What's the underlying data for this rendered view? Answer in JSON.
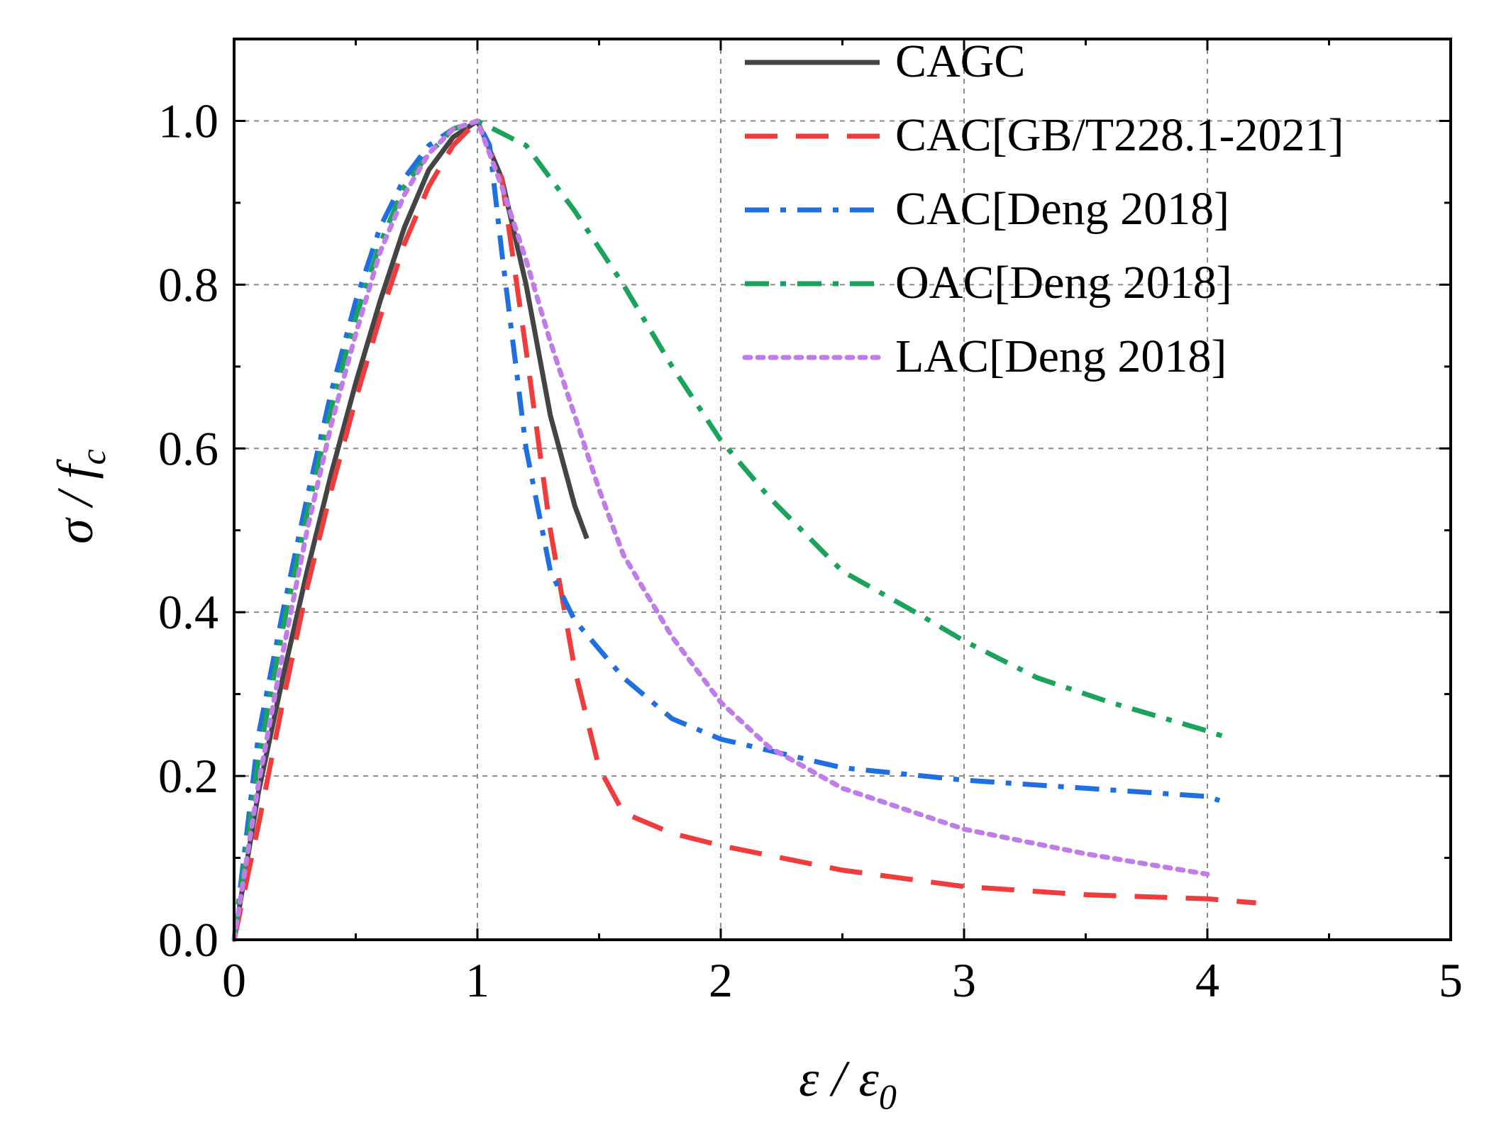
{
  "chart_data": {
    "type": "line",
    "title": "",
    "xlabel": "ε / ε0",
    "ylabel": "σ / fc",
    "xlabel_main": "ε / ε",
    "xlabel_sub": "0",
    "ylabel_main": "σ / f",
    "ylabel_sub": "c",
    "xlim": [
      0,
      5
    ],
    "ylim": [
      0,
      1.1
    ],
    "xticks": [
      0,
      1,
      2,
      3,
      4,
      5
    ],
    "xtick_labels": [
      "0",
      "1",
      "2",
      "3",
      "4",
      "5"
    ],
    "yticks": [
      0,
      0.2,
      0.4,
      0.6,
      0.8,
      1.0
    ],
    "ytick_labels": [
      "0.0",
      "0.2",
      "0.4",
      "0.6",
      "0.8",
      "1.0"
    ],
    "grid": true,
    "legend_position": "top-right",
    "series": [
      {
        "name": "CAGC",
        "color": "#444444",
        "style": "solid",
        "x": [
          0,
          0.1,
          0.2,
          0.3,
          0.4,
          0.5,
          0.6,
          0.7,
          0.8,
          0.9,
          1.0,
          1.1,
          1.2,
          1.3,
          1.4,
          1.45
        ],
        "y": [
          0,
          0.18,
          0.32,
          0.45,
          0.57,
          0.68,
          0.78,
          0.87,
          0.94,
          0.98,
          1.0,
          0.93,
          0.8,
          0.64,
          0.53,
          0.49
        ]
      },
      {
        "name": "CAC[GB/T228.1-2021]",
        "color": "#f03c3c",
        "style": "dash",
        "x": [
          0,
          0.1,
          0.2,
          0.3,
          0.4,
          0.5,
          0.6,
          0.7,
          0.8,
          0.9,
          1.0,
          1.1,
          1.2,
          1.3,
          1.4,
          1.5,
          1.6,
          1.8,
          2.0,
          2.5,
          3.0,
          3.5,
          4.0,
          4.2
        ],
        "y": [
          0,
          0.14,
          0.29,
          0.43,
          0.55,
          0.66,
          0.76,
          0.85,
          0.92,
          0.97,
          1.0,
          0.93,
          0.72,
          0.5,
          0.33,
          0.21,
          0.155,
          0.13,
          0.115,
          0.085,
          0.065,
          0.055,
          0.05,
          0.045
        ]
      },
      {
        "name": "CAC[Deng 2018]",
        "color": "#1f6fe0",
        "style": "dashdot",
        "x": [
          0,
          0.1,
          0.2,
          0.3,
          0.4,
          0.5,
          0.6,
          0.7,
          0.8,
          0.9,
          1.0,
          1.05,
          1.1,
          1.2,
          1.3,
          1.4,
          1.6,
          1.8,
          2.0,
          2.5,
          3.0,
          3.5,
          4.0,
          4.05
        ],
        "y": [
          0,
          0.25,
          0.4,
          0.54,
          0.67,
          0.78,
          0.87,
          0.93,
          0.97,
          0.99,
          1.0,
          0.97,
          0.84,
          0.6,
          0.45,
          0.39,
          0.32,
          0.27,
          0.245,
          0.21,
          0.195,
          0.185,
          0.175,
          0.17
        ]
      },
      {
        "name": "OAC[Deng 2018]",
        "color": "#1aa35a",
        "style": "dashdot",
        "x": [
          0,
          0.1,
          0.2,
          0.3,
          0.4,
          0.5,
          0.6,
          0.7,
          0.8,
          0.9,
          1.0,
          1.2,
          1.4,
          1.6,
          1.8,
          2.0,
          2.2,
          2.5,
          2.8,
          3.0,
          3.3,
          3.6,
          4.0,
          4.1
        ],
        "y": [
          0,
          0.22,
          0.38,
          0.52,
          0.65,
          0.76,
          0.85,
          0.92,
          0.96,
          0.99,
          1.0,
          0.97,
          0.89,
          0.8,
          0.7,
          0.61,
          0.54,
          0.45,
          0.4,
          0.365,
          0.32,
          0.29,
          0.255,
          0.245
        ]
      },
      {
        "name": "LAC[Deng 2018]",
        "color": "#c07ce8",
        "style": "dot",
        "x": [
          0,
          0.1,
          0.2,
          0.3,
          0.4,
          0.5,
          0.6,
          0.7,
          0.8,
          0.9,
          1.0,
          1.1,
          1.2,
          1.3,
          1.4,
          1.5,
          1.6,
          1.8,
          2.0,
          2.2,
          2.5,
          3.0,
          3.5,
          4.0
        ],
        "y": [
          0,
          0.19,
          0.35,
          0.5,
          0.63,
          0.74,
          0.84,
          0.91,
          0.96,
          0.99,
          1.0,
          0.92,
          0.83,
          0.73,
          0.64,
          0.55,
          0.47,
          0.37,
          0.29,
          0.235,
          0.185,
          0.135,
          0.105,
          0.08
        ]
      }
    ]
  }
}
